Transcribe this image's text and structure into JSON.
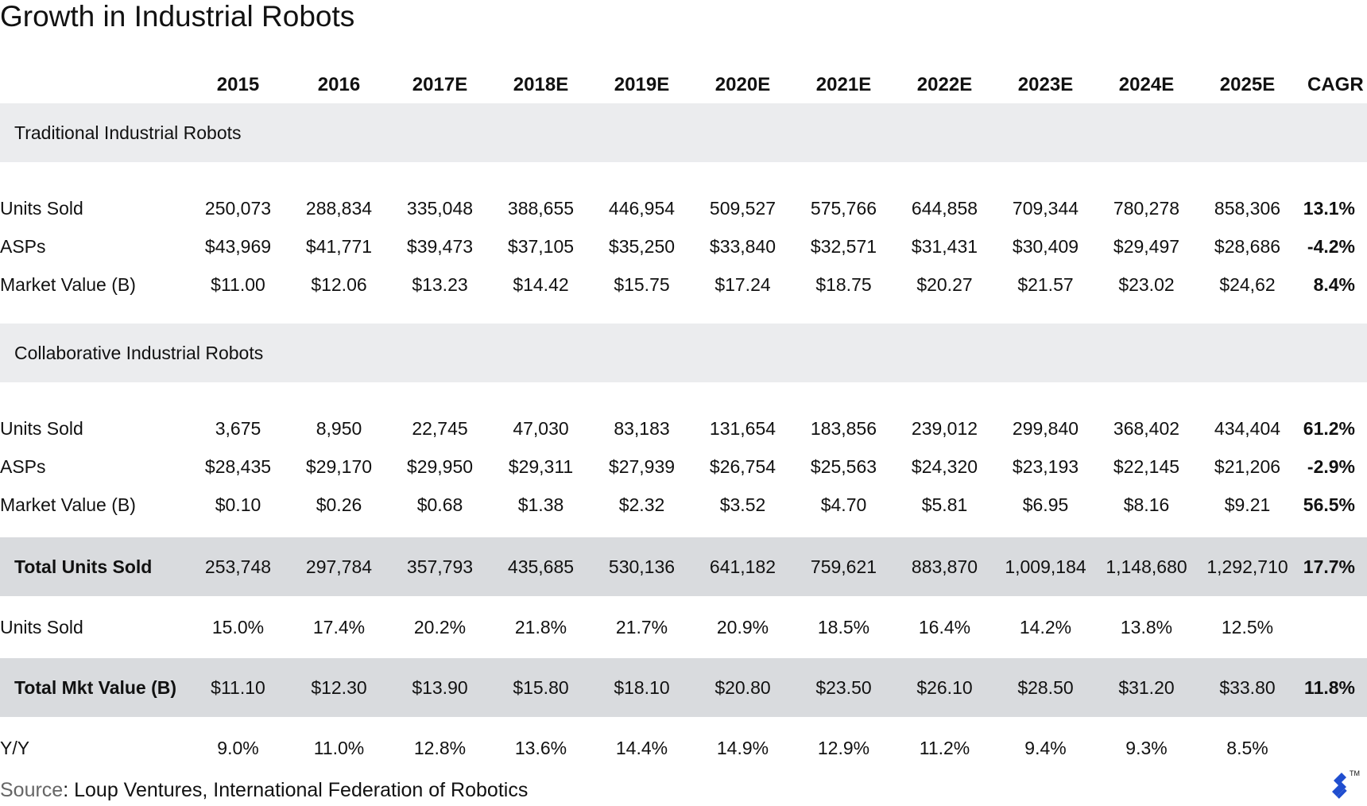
{
  "title": "Growth in Industrial Robots",
  "columns": [
    "2015",
    "2016",
    "2017E",
    "2018E",
    "2019E",
    "2020E",
    "2021E",
    "2022E",
    "2023E",
    "2024E",
    "2025E"
  ],
  "cagr_header": "CAGR",
  "sections": {
    "traditional": {
      "label": "Traditional Industrial Robots",
      "rows": [
        {
          "label": "Units Sold",
          "values": [
            "250,073",
            "288,834",
            "335,048",
            "388,655",
            "446,954",
            "509,527",
            "575,766",
            "644,858",
            "709,344",
            "780,278",
            "858,306"
          ],
          "cagr": "13.1%"
        },
        {
          "label": "ASPs",
          "values": [
            "$43,969",
            "$41,771",
            "$39,473",
            "$37,105",
            "$35,250",
            "$33,840",
            "$32,571",
            "$31,431",
            "$30,409",
            "$29,497",
            "$28,686"
          ],
          "cagr": "-4.2%"
        },
        {
          "label": "Market Value (B)",
          "values": [
            "$11.00",
            "$12.06",
            "$13.23",
            "$14.42",
            "$15.75",
            "$17.24",
            "$18.75",
            "$20.27",
            "$21.57",
            "$23.02",
            "$24,62"
          ],
          "cagr": "8.4%"
        }
      ]
    },
    "collaborative": {
      "label": "Collaborative Industrial Robots",
      "rows": [
        {
          "label": "Units Sold",
          "values": [
            "3,675",
            "8,950",
            "22,745",
            "47,030",
            "83,183",
            "131,654",
            "183,856",
            "239,012",
            "299,840",
            "368,402",
            "434,404"
          ],
          "cagr": "61.2%"
        },
        {
          "label": "ASPs",
          "values": [
            "$28,435",
            "$29,170",
            "$29,950",
            "$29,311",
            "$27,939",
            "$26,754",
            "$25,563",
            "$24,320",
            "$23,193",
            "$22,145",
            "$21,206"
          ],
          "cagr": "-2.9%"
        },
        {
          "label": "Market Value (B)",
          "values": [
            "$0.10",
            "$0.26",
            "$0.68",
            "$1.38",
            "$2.32",
            "$3.52",
            "$4.70",
            "$5.81",
            "$6.95",
            "$8.16",
            "$9.21"
          ],
          "cagr": "56.5%"
        }
      ]
    }
  },
  "total_units": {
    "label": "Total Units Sold",
    "values": [
      "253,748",
      "297,784",
      "357,793",
      "435,685",
      "530,136",
      "641,182",
      "759,621",
      "883,870",
      "1,009,184",
      "1,148,680",
      "1,292,710"
    ],
    "cagr": "17.7%"
  },
  "units_growth": {
    "label": "Units Sold",
    "values": [
      "15.0%",
      "17.4%",
      "20.2%",
      "21.8%",
      "21.7%",
      "20.9%",
      "18.5%",
      "16.4%",
      "14.2%",
      "13.8%",
      "12.5%"
    ],
    "cagr": ""
  },
  "total_value": {
    "label": "Total Mkt Value (B)",
    "values": [
      "$11.10",
      "$12.30",
      "$13.90",
      "$15.80",
      "$18.10",
      "$20.80",
      "$23.50",
      "$26.10",
      "$28.50",
      "$31.20",
      "$33.80"
    ],
    "cagr": "11.8%"
  },
  "yy": {
    "label": "Y/Y",
    "values": [
      "9.0%",
      "11.0%",
      "12.8%",
      "13.6%",
      "14.4%",
      "14.9%",
      "12.9%",
      "11.2%",
      "9.4%",
      "9.3%",
      "8.5%"
    ],
    "cagr": ""
  },
  "source": {
    "key": "Source",
    "text": ": Loup Ventures, International Federation of Robotics"
  },
  "logo": {
    "icon": "toptal-logo-icon",
    "tm": "TM",
    "color": "#204ecf"
  },
  "colors": {
    "section_bg": "#ebecee",
    "total_bg": "#d9dbde"
  },
  "chart_data": {
    "type": "table",
    "title": "Growth in Industrial Robots",
    "columns": [
      "2015",
      "2016",
      "2017E",
      "2018E",
      "2019E",
      "2020E",
      "2021E",
      "2022E",
      "2023E",
      "2024E",
      "2025E",
      "CAGR"
    ],
    "rows": [
      {
        "group": "Traditional Industrial Robots",
        "metric": "Units Sold",
        "values": [
          250073,
          288834,
          335048,
          388655,
          446954,
          509527,
          575766,
          644858,
          709344,
          780278,
          858306
        ],
        "cagr": 13.1
      },
      {
        "group": "Traditional Industrial Robots",
        "metric": "ASPs",
        "values": [
          43969,
          41771,
          39473,
          37105,
          35250,
          33840,
          32571,
          31431,
          30409,
          29497,
          28686
        ],
        "cagr": -4.2
      },
      {
        "group": "Traditional Industrial Robots",
        "metric": "Market Value (B)",
        "values": [
          11.0,
          12.06,
          13.23,
          14.42,
          15.75,
          17.24,
          18.75,
          20.27,
          21.57,
          23.02,
          24.62
        ],
        "cagr": 8.4
      },
      {
        "group": "Collaborative Industrial Robots",
        "metric": "Units Sold",
        "values": [
          3675,
          8950,
          22745,
          47030,
          83183,
          131654,
          183856,
          239012,
          299840,
          368402,
          434404
        ],
        "cagr": 61.2
      },
      {
        "group": "Collaborative Industrial Robots",
        "metric": "ASPs",
        "values": [
          28435,
          29170,
          29950,
          29311,
          27939,
          26754,
          25563,
          24320,
          23193,
          22145,
          21206
        ],
        "cagr": -2.9
      },
      {
        "group": "Collaborative Industrial Robots",
        "metric": "Market Value (B)",
        "values": [
          0.1,
          0.26,
          0.68,
          1.38,
          2.32,
          3.52,
          4.7,
          5.81,
          6.95,
          8.16,
          9.21
        ],
        "cagr": 56.5
      },
      {
        "group": "Total",
        "metric": "Total Units Sold",
        "values": [
          253748,
          297784,
          357793,
          435685,
          530136,
          641182,
          759621,
          883870,
          1009184,
          1148680,
          1292710
        ],
        "cagr": 17.7
      },
      {
        "group": "Total",
        "metric": "Units Sold",
        "values": [
          15.0,
          17.4,
          20.2,
          21.8,
          21.7,
          20.9,
          18.5,
          16.4,
          14.2,
          13.8,
          12.5
        ]
      },
      {
        "group": "Total",
        "metric": "Total Mkt Value (B)",
        "values": [
          11.1,
          12.3,
          13.9,
          15.8,
          18.1,
          20.8,
          23.5,
          26.1,
          28.5,
          31.2,
          33.8
        ],
        "cagr": 11.8
      },
      {
        "group": "Total",
        "metric": "Y/Y",
        "values": [
          9.0,
          11.0,
          12.8,
          13.6,
          14.4,
          14.9,
          12.9,
          11.2,
          9.4,
          9.3,
          8.5
        ]
      }
    ]
  }
}
